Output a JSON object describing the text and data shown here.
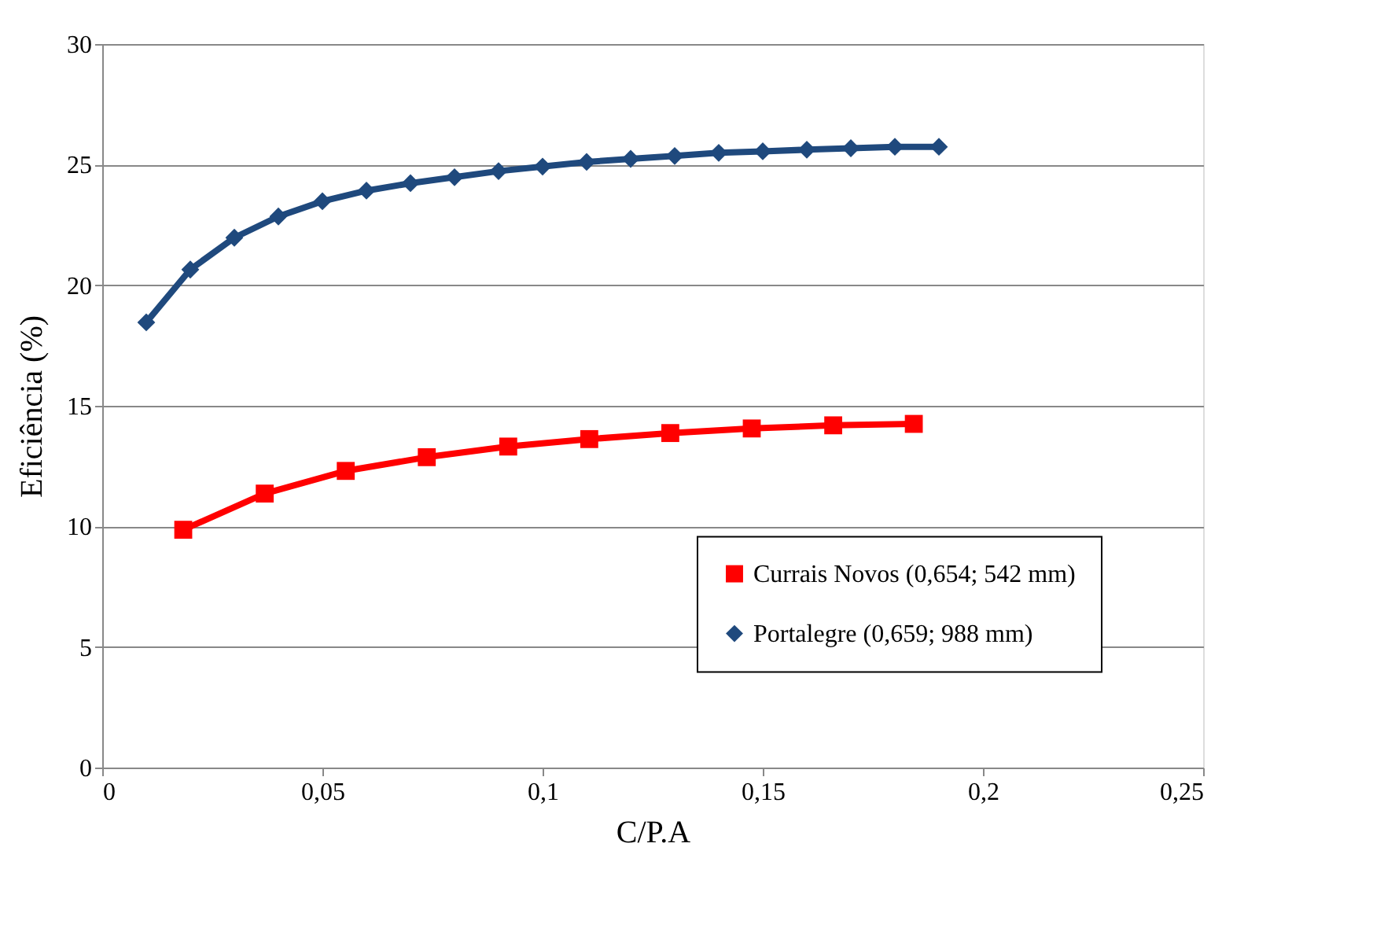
{
  "chart_data": {
    "type": "line",
    "xlabel": "C/P.A",
    "ylabel": "Eficiência (%)",
    "xlim": [
      0,
      0.25
    ],
    "xticks": [
      0,
      {
        "value": 0.05,
        "label": "0,05"
      },
      {
        "value": 0.1,
        "label": "0,1"
      },
      {
        "value": 0.15,
        "label": "0,15"
      },
      {
        "value": 0.2,
        "label": "0,2"
      },
      {
        "value": 0.25,
        "label": "0,25"
      }
    ],
    "ylim": [
      0,
      30
    ],
    "yticks": [
      0,
      5,
      10,
      15,
      20,
      25,
      30
    ],
    "grid": "y",
    "legend": "right",
    "line_style": "solid",
    "series": [
      {
        "name": "Currais Novos (0,654; 542 mm)",
        "color": "#ff0000",
        "marker": "square",
        "x": [
          0.0184,
          0.0369,
          0.0553,
          0.0737,
          0.0922,
          0.1106,
          0.129,
          0.1475,
          0.166,
          0.1843
        ],
        "values": [
          9.86,
          11.36,
          12.3,
          12.87,
          13.31,
          13.62,
          13.87,
          14.06,
          14.19,
          14.25
        ]
      },
      {
        "name": "Portalegre (0,659; 988 mm)",
        "color": "#1f497d",
        "marker": "diamond",
        "x": [
          0.01,
          0.02,
          0.03,
          0.04,
          0.05,
          0.06,
          0.07,
          0.08,
          0.09,
          0.1,
          0.11,
          0.12,
          0.13,
          0.14,
          0.15,
          0.16,
          0.17,
          0.18,
          0.19
        ],
        "values": [
          18.46,
          20.65,
          21.97,
          22.85,
          23.48,
          23.92,
          24.23,
          24.48,
          24.73,
          24.92,
          25.11,
          25.24,
          25.36,
          25.49,
          25.55,
          25.62,
          25.68,
          25.74,
          25.74
        ]
      }
    ]
  }
}
